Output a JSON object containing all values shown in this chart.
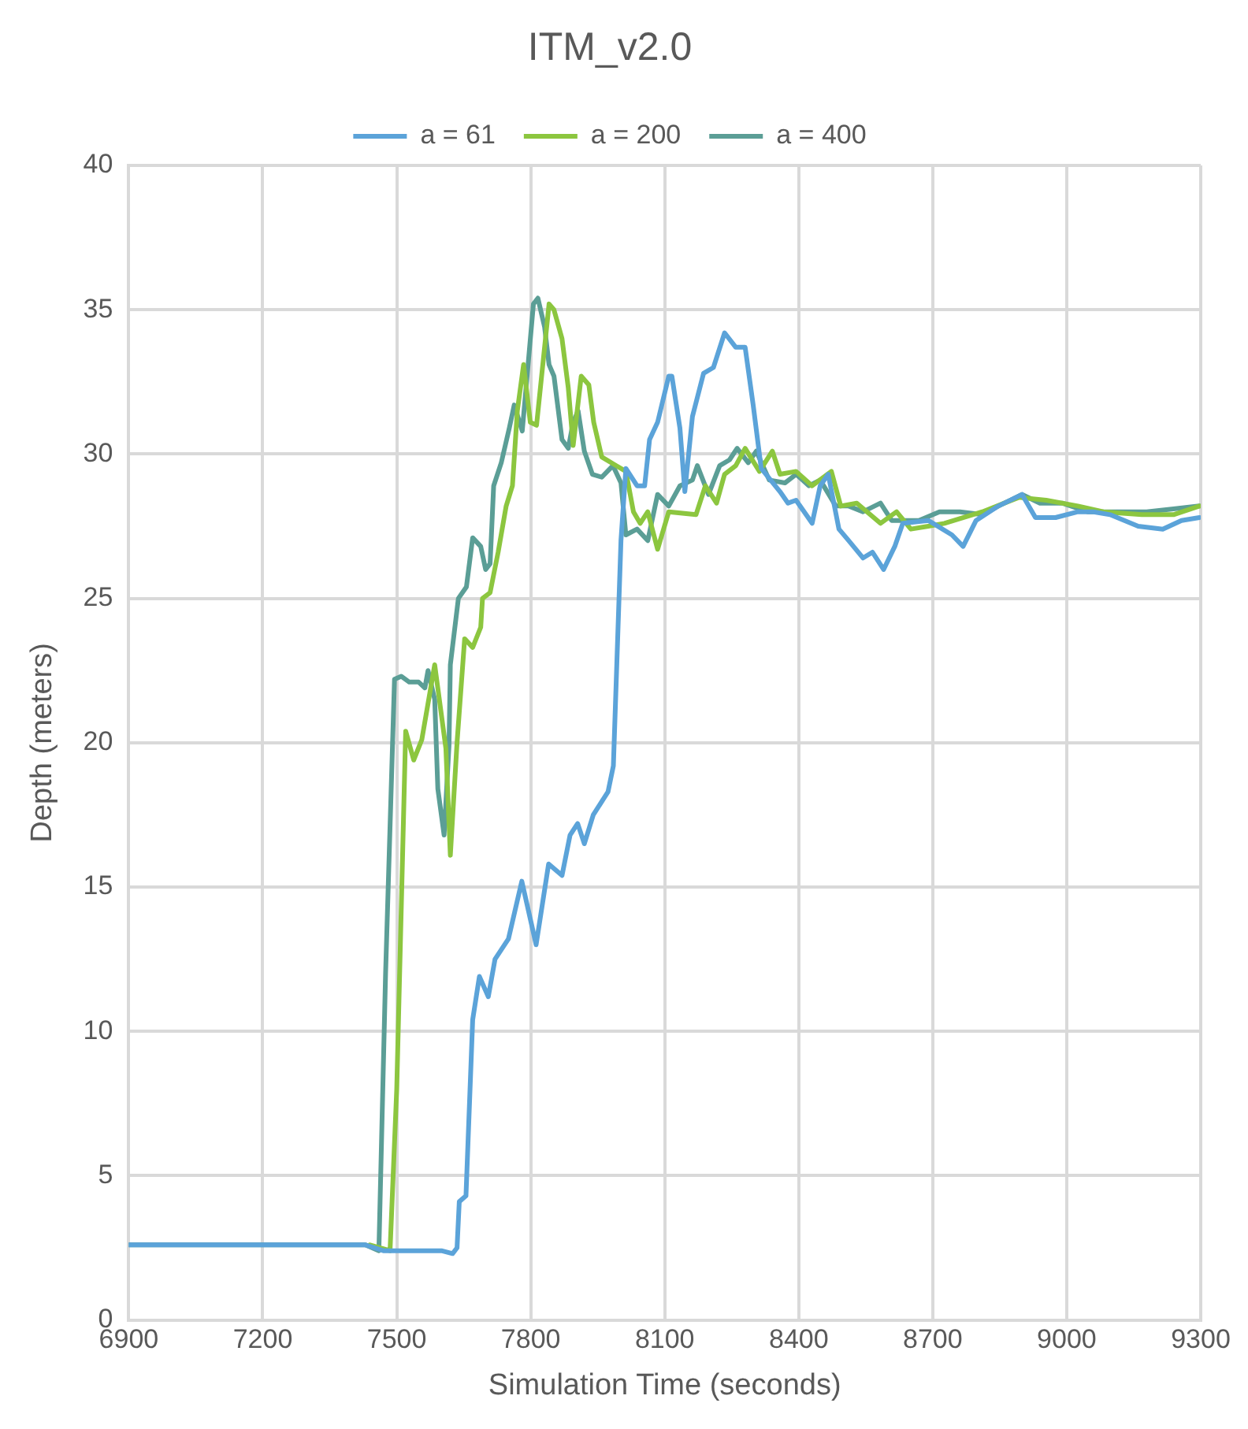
{
  "chart_data": {
    "type": "line",
    "title": "ITM_v2.0",
    "xlabel": "Simulation Time (seconds)",
    "ylabel": "Depth (meters)",
    "xlim": [
      6900,
      9300
    ],
    "xticks": [
      6900,
      7200,
      7500,
      7800,
      8100,
      8400,
      8700,
      9000,
      9300
    ],
    "ylim": [
      0,
      40
    ],
    "yticks": [
      0,
      5,
      10,
      15,
      20,
      25,
      30,
      35,
      40
    ],
    "grid": true,
    "legend": "top",
    "marker": "none",
    "line_style": "solid",
    "series": [
      {
        "name": "a = 61",
        "color": "#5ba3d9",
        "x": [
          6900,
          7200,
          7430,
          7470,
          7600,
          7625,
          7635,
          7640,
          7655,
          7670,
          7685,
          7705,
          7720,
          7750,
          7780,
          7812,
          7840,
          7870,
          7888,
          7905,
          7920,
          7940,
          7973,
          7985,
          8002,
          8013,
          8038,
          8055,
          8066,
          8084,
          8109,
          8116,
          8134,
          8145,
          8162,
          8187,
          8209,
          8234,
          8259,
          8280,
          8298,
          8316,
          8358,
          8376,
          8394,
          8430,
          8448,
          8466,
          8490,
          8512,
          8544,
          8565,
          8590,
          8615,
          8633,
          8690,
          8743,
          8768,
          8797,
          8847,
          8900,
          8930,
          8975,
          9025,
          9060,
          9097,
          9160,
          9215,
          9257,
          9297
        ],
        "values": [
          2.6,
          2.6,
          2.6,
          2.4,
          2.4,
          2.3,
          2.5,
          4.1,
          4.3,
          10.4,
          11.9,
          11.2,
          12.5,
          13.2,
          15.2,
          13.0,
          15.8,
          15.4,
          16.8,
          17.2,
          16.5,
          17.5,
          18.3,
          19.2,
          27.0,
          29.5,
          28.9,
          28.9,
          30.5,
          31.1,
          32.7,
          32.7,
          30.9,
          28.7,
          31.3,
          32.8,
          33.0,
          34.2,
          33.7,
          33.7,
          31.7,
          29.5,
          28.7,
          28.3,
          28.4,
          27.6,
          28.9,
          29.3,
          27.4,
          27.0,
          26.4,
          26.6,
          26.0,
          26.8,
          27.6,
          27.7,
          27.2,
          26.8,
          27.7,
          28.2,
          28.6,
          27.8,
          27.8,
          28.0,
          28.0,
          27.9,
          27.5,
          27.4,
          27.7,
          27.8
        ]
      },
      {
        "name": "a = 200",
        "color": "#8cc63f",
        "x": [
          7440,
          7485,
          7500,
          7520,
          7538,
          7556,
          7585,
          7610,
          7620,
          7635,
          7652,
          7670,
          7688,
          7692,
          7709,
          7727,
          7745,
          7759,
          7770,
          7784,
          7799,
          7813,
          7841,
          7852,
          7870,
          7884,
          7895,
          7913,
          7930,
          7941,
          7959,
          7991,
          8013,
          8030,
          8045,
          8062,
          8084,
          8109,
          8170,
          8191,
          8216,
          8234,
          8259,
          8280,
          8312,
          8341,
          8358,
          8394,
          8430,
          8473,
          8494,
          8530,
          8583,
          8619,
          8651,
          8690,
          8726,
          8811,
          8893,
          8954,
          9025,
          9082,
          9168,
          9239,
          9297
        ],
        "values": [
          2.6,
          2.4,
          8.0,
          20.4,
          19.4,
          20.1,
          22.7,
          19.8,
          16.1,
          20.0,
          23.6,
          23.3,
          24.0,
          25.0,
          25.2,
          26.6,
          28.2,
          28.9,
          31.5,
          33.1,
          31.1,
          31.0,
          35.2,
          35.0,
          34.0,
          32.3,
          30.3,
          32.7,
          32.4,
          31.1,
          29.9,
          29.6,
          29.4,
          28.0,
          27.6,
          28.0,
          26.7,
          28.0,
          27.9,
          28.9,
          28.3,
          29.3,
          29.6,
          30.2,
          29.4,
          30.1,
          29.3,
          29.4,
          28.9,
          29.4,
          28.2,
          28.3,
          27.6,
          28.0,
          27.4,
          27.5,
          27.6,
          28.0,
          28.5,
          28.4,
          28.2,
          28.0,
          27.9,
          27.9,
          28.2
        ]
      },
      {
        "name": "a = 400",
        "color": "#5b9e96",
        "x": [
          6900,
          7200,
          7430,
          7460,
          7475,
          7495,
          7510,
          7528,
          7549,
          7563,
          7570,
          7585,
          7592,
          7606,
          7617,
          7620,
          7638,
          7656,
          7670,
          7688,
          7699,
          7709,
          7717,
          7734,
          7752,
          7763,
          7781,
          7806,
          7816,
          7831,
          7841,
          7852,
          7870,
          7884,
          7895,
          7906,
          7920,
          7938,
          7959,
          7984,
          8002,
          8013,
          8038,
          8062,
          8084,
          8109,
          8134,
          8162,
          8173,
          8198,
          8223,
          8245,
          8262,
          8287,
          8305,
          8334,
          8369,
          8394,
          8423,
          8448,
          8483,
          8512,
          8544,
          8583,
          8608,
          8669,
          8715,
          8761,
          8811,
          8847,
          8900,
          8940,
          8990,
          9047,
          9118,
          9179,
          9239,
          9297
        ],
        "values": [
          2.6,
          2.6,
          2.6,
          2.4,
          12.0,
          22.2,
          22.3,
          22.1,
          22.1,
          21.9,
          22.5,
          21.5,
          18.4,
          16.8,
          19.9,
          22.7,
          25.0,
          25.4,
          27.1,
          26.8,
          26.0,
          26.2,
          28.9,
          29.7,
          30.9,
          31.7,
          30.8,
          35.2,
          35.4,
          34.4,
          33.1,
          32.7,
          30.5,
          30.2,
          31.1,
          31.5,
          30.1,
          29.3,
          29.2,
          29.6,
          29.0,
          27.2,
          27.4,
          27.0,
          28.6,
          28.2,
          28.9,
          29.1,
          29.6,
          28.6,
          29.6,
          29.8,
          30.2,
          29.7,
          30.1,
          29.1,
          29.0,
          29.3,
          28.9,
          29.1,
          28.2,
          28.2,
          28.0,
          28.3,
          27.7,
          27.7,
          28.0,
          28.0,
          27.9,
          28.2,
          28.6,
          28.3,
          28.3,
          28.0,
          28.0,
          28.0,
          28.1,
          28.2
        ]
      }
    ]
  }
}
